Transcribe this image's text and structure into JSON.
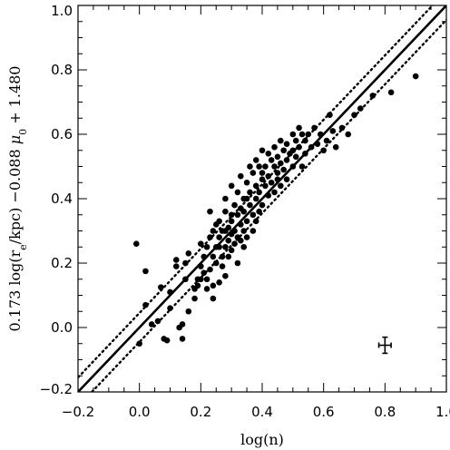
{
  "chart_data": {
    "type": "scatter",
    "xlabel": "log(n)",
    "ylabel": "0.173 log(r_e/kpc) −0.088 μ_0 + 1.480",
    "xlim": [
      -0.2,
      1.0
    ],
    "ylim": [
      -0.2,
      1.0
    ],
    "xticks": [
      -0.2,
      0.0,
      0.2,
      0.4,
      0.6,
      0.8,
      1.0
    ],
    "yticks": [
      -0.2,
      0.0,
      0.2,
      0.4,
      0.6,
      0.8,
      1.0
    ],
    "xtick_labels": [
      "−0.2",
      "0.0",
      "0.2",
      "0.4",
      "0.6",
      "0.8",
      "1.0"
    ],
    "ytick_labels": [
      "−0.2",
      "0.0",
      "0.2",
      "0.4",
      "0.6",
      "0.8",
      "1.0"
    ],
    "grid": false,
    "fit_line": {
      "slope": 1.0,
      "intercept": 0.0,
      "style": "solid"
    },
    "scatter_band": [
      {
        "slope": 1.0,
        "intercept": 0.045,
        "style": "dotted"
      },
      {
        "slope": 1.0,
        "intercept": -0.045,
        "style": "dotted"
      }
    ],
    "error_bar": {
      "x": 0.8,
      "y": -0.055,
      "xerr": 0.02,
      "yerr": 0.025
    },
    "points": [
      [
        -0.01,
        0.26
      ],
      [
        0.0,
        -0.05
      ],
      [
        0.02,
        0.175
      ],
      [
        0.02,
        0.07
      ],
      [
        0.04,
        0.01
      ],
      [
        0.06,
        0.02
      ],
      [
        0.07,
        0.125
      ],
      [
        0.08,
        -0.035
      ],
      [
        0.09,
        -0.04
      ],
      [
        0.1,
        0.06
      ],
      [
        0.1,
        0.11
      ],
      [
        0.12,
        0.21
      ],
      [
        0.12,
        0.19
      ],
      [
        0.13,
        0.0
      ],
      [
        0.14,
        0.01
      ],
      [
        0.14,
        -0.035
      ],
      [
        0.15,
        0.15
      ],
      [
        0.15,
        0.2
      ],
      [
        0.16,
        0.23
      ],
      [
        0.16,
        0.05
      ],
      [
        0.18,
        0.12
      ],
      [
        0.18,
        0.09
      ],
      [
        0.19,
        0.15
      ],
      [
        0.2,
        0.26
      ],
      [
        0.2,
        0.19
      ],
      [
        0.21,
        0.17
      ],
      [
        0.21,
        0.22
      ],
      [
        0.22,
        0.12
      ],
      [
        0.22,
        0.15
      ],
      [
        0.23,
        0.28
      ],
      [
        0.23,
        0.36
      ],
      [
        0.23,
        0.18
      ],
      [
        0.24,
        0.22
      ],
      [
        0.24,
        0.13
      ],
      [
        0.24,
        0.09
      ],
      [
        0.25,
        0.32
      ],
      [
        0.25,
        0.2
      ],
      [
        0.25,
        0.25
      ],
      [
        0.26,
        0.33
      ],
      [
        0.26,
        0.28
      ],
      [
        0.26,
        0.14
      ],
      [
        0.27,
        0.3
      ],
      [
        0.27,
        0.22
      ],
      [
        0.27,
        0.19
      ],
      [
        0.28,
        0.4
      ],
      [
        0.28,
        0.36
      ],
      [
        0.28,
        0.25
      ],
      [
        0.28,
        0.16
      ],
      [
        0.29,
        0.31
      ],
      [
        0.29,
        0.27
      ],
      [
        0.29,
        0.22
      ],
      [
        0.3,
        0.44
      ],
      [
        0.3,
        0.33
      ],
      [
        0.3,
        0.29
      ],
      [
        0.3,
        0.24
      ],
      [
        0.31,
        0.38
      ],
      [
        0.31,
        0.3
      ],
      [
        0.31,
        0.26
      ],
      [
        0.32,
        0.42
      ],
      [
        0.32,
        0.35
      ],
      [
        0.32,
        0.28
      ],
      [
        0.32,
        0.2
      ],
      [
        0.33,
        0.47
      ],
      [
        0.33,
        0.32
      ],
      [
        0.33,
        0.27
      ],
      [
        0.34,
        0.4
      ],
      [
        0.34,
        0.36
      ],
      [
        0.34,
        0.3
      ],
      [
        0.34,
        0.25
      ],
      [
        0.35,
        0.45
      ],
      [
        0.35,
        0.33
      ],
      [
        0.35,
        0.28
      ],
      [
        0.36,
        0.5
      ],
      [
        0.36,
        0.42
      ],
      [
        0.36,
        0.38
      ],
      [
        0.37,
        0.48
      ],
      [
        0.37,
        0.35
      ],
      [
        0.37,
        0.3
      ],
      [
        0.38,
        0.52
      ],
      [
        0.38,
        0.44
      ],
      [
        0.38,
        0.4
      ],
      [
        0.39,
        0.5
      ],
      [
        0.39,
        0.42
      ],
      [
        0.39,
        0.36
      ],
      [
        0.4,
        0.55
      ],
      [
        0.4,
        0.46
      ],
      [
        0.4,
        0.38
      ],
      [
        0.41,
        0.5
      ],
      [
        0.41,
        0.44
      ],
      [
        0.42,
        0.54
      ],
      [
        0.42,
        0.47
      ],
      [
        0.42,
        0.41
      ],
      [
        0.43,
        0.52
      ],
      [
        0.43,
        0.45
      ],
      [
        0.44,
        0.56
      ],
      [
        0.44,
        0.5
      ],
      [
        0.44,
        0.42
      ],
      [
        0.45,
        0.48
      ],
      [
        0.45,
        0.53
      ],
      [
        0.46,
        0.58
      ],
      [
        0.46,
        0.51
      ],
      [
        0.46,
        0.44
      ],
      [
        0.47,
        0.55
      ],
      [
        0.47,
        0.49
      ],
      [
        0.48,
        0.57
      ],
      [
        0.48,
        0.52
      ],
      [
        0.48,
        0.46
      ],
      [
        0.49,
        0.54
      ],
      [
        0.5,
        0.6
      ],
      [
        0.5,
        0.55
      ],
      [
        0.5,
        0.5
      ],
      [
        0.51,
        0.58
      ],
      [
        0.51,
        0.53
      ],
      [
        0.52,
        0.62
      ],
      [
        0.52,
        0.56
      ],
      [
        0.53,
        0.6
      ],
      [
        0.53,
        0.5
      ],
      [
        0.54,
        0.58
      ],
      [
        0.54,
        0.54
      ],
      [
        0.55,
        0.6
      ],
      [
        0.56,
        0.56
      ],
      [
        0.57,
        0.62
      ],
      [
        0.58,
        0.57
      ],
      [
        0.59,
        0.6
      ],
      [
        0.6,
        0.55
      ],
      [
        0.61,
        0.58
      ],
      [
        0.62,
        0.66
      ],
      [
        0.63,
        0.61
      ],
      [
        0.64,
        0.56
      ],
      [
        0.66,
        0.62
      ],
      [
        0.68,
        0.6
      ],
      [
        0.7,
        0.66
      ],
      [
        0.72,
        0.68
      ],
      [
        0.76,
        0.72
      ],
      [
        0.82,
        0.73
      ],
      [
        0.9,
        0.78
      ],
      [
        0.24,
        0.3
      ],
      [
        0.2,
        0.15
      ],
      [
        0.3,
        0.35
      ],
      [
        0.35,
        0.4
      ],
      [
        0.4,
        0.48
      ],
      [
        0.45,
        0.46
      ],
      [
        0.28,
        0.3
      ],
      [
        0.19,
        0.13
      ],
      [
        0.26,
        0.25
      ],
      [
        0.22,
        0.25
      ],
      [
        0.33,
        0.37
      ],
      [
        0.38,
        0.33
      ]
    ]
  }
}
